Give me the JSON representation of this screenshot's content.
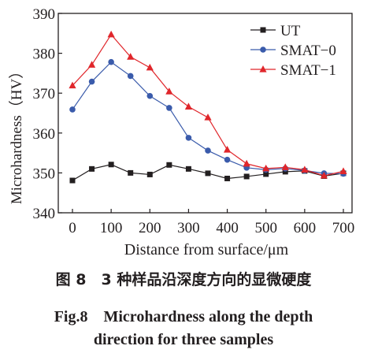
{
  "chart_data": {
    "type": "line",
    "xlabel": "Distance from surface/μm",
    "ylabel": "Microhardness（HV）",
    "xlim": [
      0,
      700
    ],
    "ylim": [
      340,
      390
    ],
    "xticks": [
      0,
      100,
      200,
      300,
      400,
      500,
      600,
      700
    ],
    "yticks": [
      340,
      350,
      360,
      370,
      380,
      390
    ],
    "grid": false,
    "legend_position": "top-right",
    "series": [
      {
        "name": "UT",
        "color": "#231f20",
        "marker": "square",
        "x": [
          0,
          50,
          100,
          150,
          200,
          250,
          300,
          350,
          400,
          450,
          500,
          550,
          600,
          650,
          700
        ],
        "y": [
          348.1,
          351.0,
          352.1,
          350.0,
          349.6,
          352.0,
          351.0,
          349.9,
          348.6,
          349.1,
          349.7,
          350.3,
          350.5,
          349.2,
          349.9
        ]
      },
      {
        "name": "SMAT−0",
        "color": "#3a5bab",
        "marker": "circle",
        "x": [
          0,
          50,
          100,
          150,
          200,
          250,
          300,
          350,
          400,
          450,
          500,
          550,
          600,
          650,
          700
        ],
        "y": [
          365.9,
          372.9,
          377.8,
          374.3,
          369.3,
          366.3,
          358.8,
          355.6,
          353.3,
          351.3,
          350.8,
          351.1,
          350.6,
          349.9,
          349.8
        ]
      },
      {
        "name": "SMAT−1",
        "color": "#e0262b",
        "marker": "triangle",
        "x": [
          0,
          50,
          100,
          150,
          200,
          250,
          300,
          350,
          400,
          450,
          500,
          550,
          600,
          650,
          700
        ],
        "y": [
          371.9,
          377.1,
          384.7,
          379.1,
          376.4,
          370.4,
          366.6,
          363.9,
          355.8,
          352.3,
          351.1,
          351.4,
          350.8,
          349.3,
          350.4
        ]
      }
    ]
  },
  "caption": {
    "cn": "图 8　3 种样品沿深度方向的显微硬度",
    "en_line1": "Fig.8　Microhardness along the depth",
    "en_line2": "direction for three samples"
  }
}
